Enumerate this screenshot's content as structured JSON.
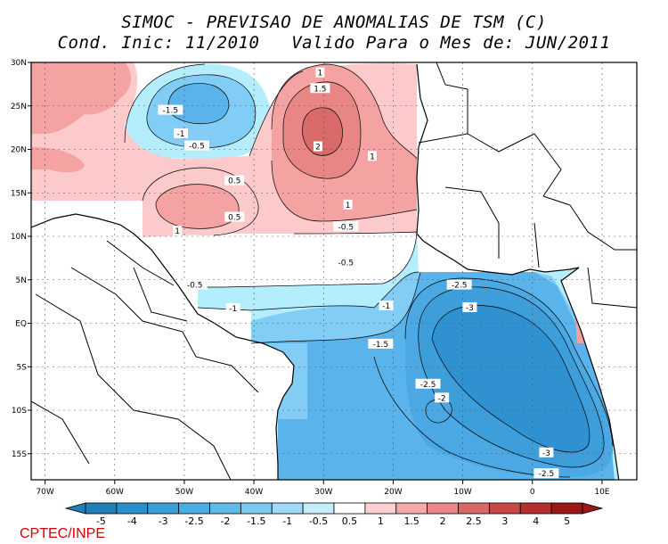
{
  "title": {
    "line1": "SIMOC - PREVISAO DE ANOMALIAS DE TSM (C)",
    "line2": "Cond. Inic: 11/2010   Valido Para o Mes de: JUN/2011"
  },
  "map": {
    "lon_range": [
      -72,
      15
    ],
    "lat_range": [
      -18,
      30
    ],
    "lon_ticks": [
      {
        "value": -70,
        "label": "70W"
      },
      {
        "value": -60,
        "label": "60W"
      },
      {
        "value": -50,
        "label": "50W"
      },
      {
        "value": -40,
        "label": "40W"
      },
      {
        "value": -30,
        "label": "30W"
      },
      {
        "value": -20,
        "label": "20W"
      },
      {
        "value": -10,
        "label": "10W"
      },
      {
        "value": 0,
        "label": "0"
      },
      {
        "value": 10,
        "label": "10E"
      }
    ],
    "lat_ticks": [
      {
        "value": 30,
        "label": "30N"
      },
      {
        "value": 25,
        "label": "25N"
      },
      {
        "value": 20,
        "label": "20N"
      },
      {
        "value": 15,
        "label": "15N"
      },
      {
        "value": 10,
        "label": "10N"
      },
      {
        "value": 5,
        "label": "5N"
      },
      {
        "value": 0,
        "label": "EQ"
      },
      {
        "value": -5,
        "label": "5S"
      },
      {
        "value": -10,
        "label": "10S"
      },
      {
        "value": -15,
        "label": "15S"
      }
    ],
    "contour_labels": [
      {
        "lon": -30.5,
        "lat": 28.8,
        "text": "1"
      },
      {
        "lon": -30.5,
        "lat": 27.0,
        "text": "1.5"
      },
      {
        "lon": -30.8,
        "lat": 20.3,
        "text": "2"
      },
      {
        "lon": -23.0,
        "lat": 19.2,
        "text": "1"
      },
      {
        "lon": -52.0,
        "lat": 24.5,
        "text": "-1.5"
      },
      {
        "lon": -50.5,
        "lat": 21.8,
        "text": "-1"
      },
      {
        "lon": -48.2,
        "lat": 20.4,
        "text": "-0.5"
      },
      {
        "lon": -42.8,
        "lat": 16.4,
        "text": "0.5"
      },
      {
        "lon": -26.5,
        "lat": 13.6,
        "text": "1"
      },
      {
        "lon": -42.8,
        "lat": 12.2,
        "text": "0.5"
      },
      {
        "lon": -51.0,
        "lat": 10.6,
        "text": "1"
      },
      {
        "lon": -26.8,
        "lat": 11.1,
        "text": "-0.5"
      },
      {
        "lon": -26.8,
        "lat": 7.0,
        "text": "-0.5"
      },
      {
        "lon": -48.5,
        "lat": 4.4,
        "text": "-0.5"
      },
      {
        "lon": -43.0,
        "lat": 1.7,
        "text": "-1"
      },
      {
        "lon": -21.0,
        "lat": 2.0,
        "text": "-1"
      },
      {
        "lon": -10.5,
        "lat": 4.4,
        "text": "-2.5"
      },
      {
        "lon": -9.0,
        "lat": 1.8,
        "text": "-3"
      },
      {
        "lon": -21.8,
        "lat": -2.4,
        "text": "-1.5"
      },
      {
        "lon": -15.0,
        "lat": -7.0,
        "text": "-2.5"
      },
      {
        "lon": -13.0,
        "lat": -8.6,
        "text": "-2"
      },
      {
        "lon": 2.0,
        "lat": -14.9,
        "text": "-3"
      },
      {
        "lon": 2.0,
        "lat": -17.3,
        "text": "-2.5"
      }
    ]
  },
  "legend": {
    "labels": [
      "-5",
      "-4",
      "-3",
      "-2.5",
      "-2",
      "-1.5",
      "-1",
      "-0.5",
      "0.5",
      "1",
      "1.5",
      "2",
      "2.5",
      "3",
      "4",
      "5"
    ],
    "colors": [
      "#1f7fb6",
      "#2b8fcb",
      "#3a9fd8",
      "#4aaee2",
      "#60bbe8",
      "#7ccaf0",
      "#9fdaf6",
      "#c4ecfb",
      "#ffffff",
      "#fcd0d0",
      "#f4a9a9",
      "#e98888",
      "#d86767",
      "#c84848",
      "#b43030",
      "#9a1818"
    ]
  },
  "colors": {
    "neg_05": "#b4eefc",
    "neg_1": "#82cdf5",
    "neg_15": "#5ab4eb",
    "neg_2": "#4ba8e2",
    "neg_25": "#3e9ed9",
    "neg_3": "#2f91cf",
    "pos_05": "#fccaca",
    "pos_1": "#f4a2a2",
    "pos_15": "#e88585",
    "pos_2": "#d86a6a",
    "land": "#ffffff",
    "coast": "#000000"
  },
  "credit": "CPTEC/INPE"
}
